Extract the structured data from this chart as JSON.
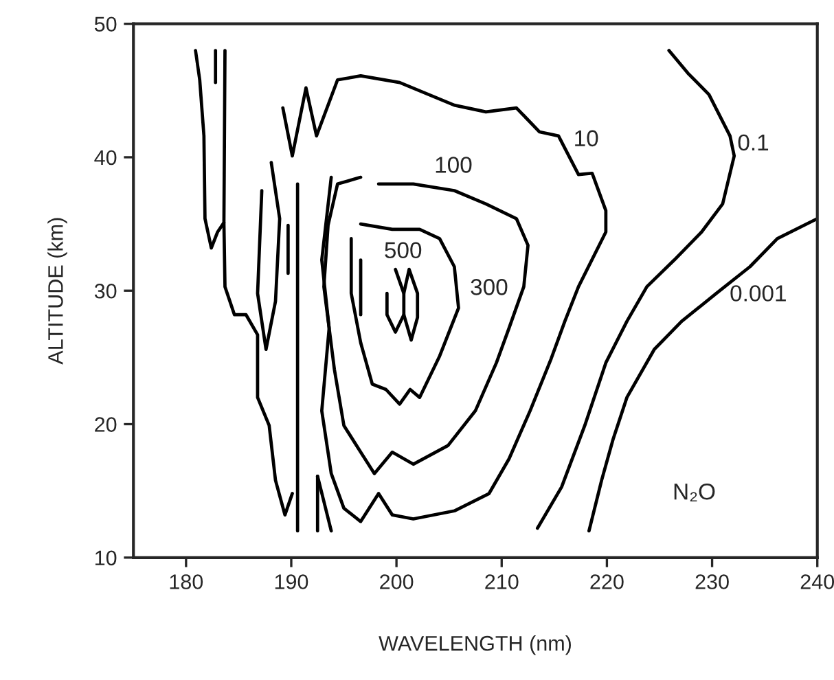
{
  "chart_data": {
    "type": "line",
    "xlabel": "WAVELENGTH (nm)",
    "ylabel": "ALTITUDE (km)",
    "xlim": [
      175,
      240
    ],
    "ylim": [
      10,
      50
    ],
    "xticks": [
      180,
      190,
      200,
      210,
      220,
      230,
      240
    ],
    "yticks": [
      10,
      20,
      30,
      40,
      50
    ],
    "grid": false,
    "legend": false,
    "marker": "none",
    "line_style": "solid",
    "series": [
      {
        "color": "#000000",
        "x": [
          225.9,
          227.7,
          229.7,
          231.7,
          232.1,
          231.0,
          229.0,
          226.4,
          223.8,
          221.9,
          219.9,
          217.9,
          215.7,
          213.4
        ],
        "values": [
          48.0,
          46.3,
          44.7,
          41.6,
          40.1,
          36.5,
          34.4,
          32.3,
          30.3,
          27.7,
          24.6,
          19.9,
          15.3,
          12.2
        ]
      },
      {
        "color": "#000000",
        "x": [
          240,
          236.2,
          233.6,
          230.4,
          227.1,
          224.5,
          221.9,
          220.6,
          219.5,
          218.3
        ],
        "values": [
          35.4,
          33.9,
          31.8,
          29.8,
          27.7,
          25.6,
          22.0,
          18.9,
          15.8,
          12.0
        ]
      },
      {
        "color": "#000000",
        "x": [
          189.2,
          190.1,
          191.4,
          192.4,
          194.4,
          196.6,
          200.3,
          205.5,
          208.5,
          211.4,
          213.6,
          215.4,
          217.3,
          218.6,
          219.9,
          219.9,
          217.3,
          216.0,
          214.7,
          212.7,
          210.7,
          208.8,
          205.5,
          201.6,
          199.6,
          198.3,
          196.6,
          195.0,
          193.8,
          192.9,
          193.6,
          192.9,
          193.8
        ],
        "values": [
          43.7,
          40.1,
          45.2,
          41.6,
          45.8,
          46.1,
          45.6,
          43.9,
          43.4,
          43.7,
          41.9,
          41.6,
          38.7,
          38.8,
          36.0,
          34.4,
          30.3,
          27.7,
          24.9,
          21.0,
          17.4,
          14.8,
          13.5,
          12.9,
          13.2,
          14.8,
          12.7,
          13.7,
          16.3,
          21.0,
          27.2,
          32.3,
          38.5
        ]
      },
      {
        "color": "#000000",
        "x": [
          198.3,
          201.6,
          205.5,
          208.5,
          211.4,
          212.5,
          212.1,
          210.7,
          209.5,
          207.5,
          204.9,
          201.6,
          199.6,
          197.9,
          196.6,
          195.0,
          194.1,
          193.1,
          193.5,
          194.4,
          196.6
        ],
        "values": [
          38.0,
          38.0,
          37.5,
          36.5,
          35.4,
          33.4,
          30.3,
          27.2,
          24.6,
          21.0,
          18.4,
          17.0,
          17.9,
          16.3,
          17.9,
          19.9,
          24.1,
          30.3,
          34.9,
          38.0,
          38.5
        ]
      },
      {
        "color": "#000000",
        "x": [
          196.6,
          199.6,
          202.2,
          204.1,
          205.5,
          205.9,
          204.1,
          202.2,
          201.3,
          200.3,
          199.0,
          197.7,
          196.6,
          195.7,
          195.7
        ],
        "values": [
          35.0,
          34.6,
          34.6,
          33.9,
          31.8,
          28.7,
          25.1,
          22.0,
          22.6,
          21.5,
          22.6,
          23.0,
          26.1,
          29.8,
          33.9
        ]
      },
      {
        "color": "#000000",
        "x": [
          199.9,
          200.7,
          200.7,
          199.9,
          199.1,
          199.1
        ],
        "values": [
          31.6,
          29.8,
          28.2,
          26.9,
          28.2,
          29.8
        ]
      },
      {
        "color": "#000000",
        "x": [
          200.7,
          201.2,
          202.0,
          202.0,
          201.4,
          200.7
        ],
        "values": [
          29.8,
          31.6,
          29.8,
          28.0,
          26.3,
          28.2
        ]
      },
      {
        "color": "#000000",
        "x": [
          180.9,
          181.3,
          181.7,
          181.8,
          182.4,
          183.0,
          183.6,
          183.7
        ],
        "values": [
          48.0,
          45.8,
          41.6,
          35.4,
          33.2,
          34.4,
          35.1,
          48.0
        ]
      },
      {
        "color": "#000000",
        "x": [
          182.8,
          182.8
        ],
        "values": [
          48.0,
          45.6
        ]
      },
      {
        "color": "#000000",
        "x": [
          183.6,
          183.7,
          184.6,
          185.7,
          186.8,
          186.8,
          187.9,
          188.5,
          189.4,
          190.1
        ],
        "values": [
          35.1,
          30.3,
          28.2,
          28.2,
          26.7,
          22.0,
          19.9,
          15.8,
          13.2,
          14.8
        ]
      },
      {
        "color": "#000000",
        "x": [
          190.6,
          190.6
        ],
        "values": [
          38.0,
          12.0
        ]
      },
      {
        "color": "#000000",
        "x": [
          188.1,
          188.9,
          188.5,
          187.6,
          186.8,
          187.2
        ],
        "values": [
          39.6,
          35.4,
          29.2,
          25.6,
          29.8,
          37.5
        ]
      },
      {
        "color": "#000000",
        "x": [
          189.7,
          189.7
        ],
        "values": [
          34.9,
          31.3
        ]
      },
      {
        "color": "#000000",
        "x": [
          196.6,
          196.6
        ],
        "values": [
          32.3,
          28.2
        ]
      },
      {
        "color": "#000000",
        "x": [
          192.5,
          192.5
        ],
        "values": [
          16.1,
          12.0
        ]
      },
      {
        "color": "#000000",
        "x": [
          192.5,
          193.8
        ],
        "values": [
          16.1,
          12.0
        ]
      }
    ],
    "annotations": [
      {
        "text": "10",
        "x": 217.3,
        "y": 38.7
      },
      {
        "text": "100",
        "x": 201.6,
        "y": 38.0
      },
      {
        "text": "300",
        "x": 205.9,
        "y": 28.7
      },
      {
        "text": "500",
        "x": 199.9,
        "y": 31.6
      },
      {
        "text": "0.1",
        "x": 232.1,
        "y": 40.1
      },
      {
        "text": "0.001",
        "x": 230.4,
        "y": 29.8
      },
      "N₂O"
    ]
  }
}
